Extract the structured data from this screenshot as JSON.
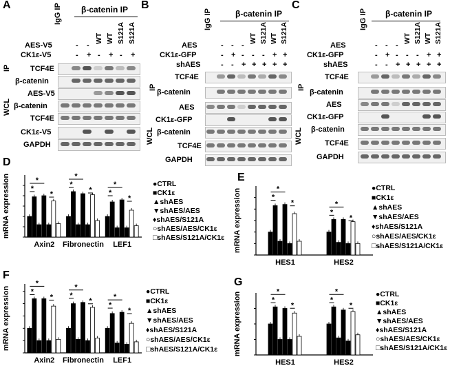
{
  "panels": {
    "A": {
      "label": "A",
      "lane_headers": [
        "IgG IP",
        "β-catenin IP"
      ],
      "conditions": [
        {
          "name": "AES-V5",
          "values": [
            "",
            "-",
            "-",
            "WT",
            "WT",
            "S121A",
            "S121A"
          ]
        },
        {
          "name": "CK1ε-V5",
          "values": [
            "",
            "-",
            "+",
            "-",
            "+",
            "-",
            "+"
          ]
        }
      ],
      "group_labels": [
        "IP",
        "WCL"
      ],
      "rows": [
        "TCF4E",
        "β-catenin",
        "AES-V5",
        "β-catenin",
        "TCF4E",
        "CK1ε-V5",
        "GAPDH"
      ]
    },
    "B": {
      "label": "B",
      "lane_headers": [
        "IgG IP",
        "β-catenin IP"
      ],
      "conditions": [
        {
          "name": "AES",
          "values": [
            "",
            "-",
            "-",
            "-",
            "WT",
            "S121A",
            "WT",
            "S121A"
          ]
        },
        {
          "name": "CK1ε-GFP",
          "values": [
            "",
            "-",
            "+",
            "-",
            "-",
            "-",
            "+",
            "+"
          ]
        },
        {
          "name": "shAES",
          "values": [
            "",
            "-",
            "-",
            "+",
            "+",
            "+",
            "+",
            "+"
          ]
        }
      ],
      "group_labels": [
        "IP",
        "WCL"
      ],
      "rows": [
        "TCF4E",
        "β-catenin",
        "AES",
        "CK1ε-GFP",
        "β-catenin",
        "TCF4E",
        "GAPDH"
      ]
    },
    "C": {
      "label": "C",
      "lane_headers": [
        "IgG IP",
        "β-catenin IP"
      ],
      "conditions": [
        {
          "name": "AES",
          "values": [
            "",
            "-",
            "-",
            "-",
            "WT",
            "S121A",
            "WT",
            "S121A"
          ]
        },
        {
          "name": "CK1ε-GFP",
          "values": [
            "",
            "-",
            "+",
            "-",
            "-",
            "-",
            "+",
            "+"
          ]
        },
        {
          "name": "shAES",
          "values": [
            "",
            "-",
            "-",
            "+",
            "+",
            "+",
            "+",
            "+"
          ]
        }
      ],
      "group_labels": [
        "IP",
        "WCL"
      ],
      "rows": [
        "TCF4E",
        "β-catenin",
        "AES",
        "CK1ε-GFP",
        "β-catenin",
        "TCF4E",
        "GAPDH"
      ]
    }
  },
  "legend_labels": [
    "CTRL",
    "CK1ε",
    "shAES",
    "shAES/AES",
    "shAES/S121A",
    "shAES/AES/CK1ε",
    "shAES/S121A/CK1ε"
  ],
  "significance": "*",
  "chart_data": [
    {
      "type": "bar",
      "panel": "D",
      "ylabel": "mRNA expression",
      "ylim": [
        0,
        3
      ],
      "yticks": [
        0,
        0.5,
        1,
        1.5,
        2,
        2.5
      ],
      "categories": [
        "Axin2",
        "Fibronectin",
        "LEF1"
      ],
      "series": [
        {
          "name": "CTRL",
          "values": [
            1.0,
            1.0,
            1.0
          ]
        },
        {
          "name": "CK1ε",
          "values": [
            1.95,
            2.2,
            1.7
          ]
        },
        {
          "name": "shAES",
          "values": [
            0.6,
            0.6,
            0.45
          ]
        },
        {
          "name": "shAES/AES",
          "values": [
            2.0,
            2.1,
            1.8
          ]
        },
        {
          "name": "shAES/S121A",
          "values": [
            0.6,
            0.6,
            0.45
          ]
        },
        {
          "name": "shAES/AES/CK1ε",
          "values": [
            1.75,
            2.05,
            1.3
          ]
        },
        {
          "name": "shAES/S121A/CK1ε",
          "values": [
            0.65,
            0.8,
            0.55
          ]
        }
      ]
    },
    {
      "type": "bar",
      "panel": "E",
      "ylabel": "mRNA expression",
      "ylim": [
        0,
        3
      ],
      "yticks": [
        0,
        0.5,
        1,
        1.5,
        2,
        2.5
      ],
      "categories": [
        "HES1",
        "HES2"
      ],
      "series": [
        {
          "name": "CTRL",
          "values": [
            1.0,
            1.0
          ]
        },
        {
          "name": "CK1ε",
          "values": [
            2.15,
            1.55
          ]
        },
        {
          "name": "shAES",
          "values": [
            0.6,
            0.55
          ]
        },
        {
          "name": "shAES/AES",
          "values": [
            2.2,
            1.55
          ]
        },
        {
          "name": "shAES/S121A",
          "values": [
            0.5,
            0.5
          ]
        },
        {
          "name": "shAES/AES/CK1ε",
          "values": [
            1.8,
            1.45
          ]
        },
        {
          "name": "shAES/S121A/CK1ε",
          "values": [
            0.6,
            0.5
          ]
        }
      ]
    },
    {
      "type": "bar",
      "panel": "F",
      "ylabel": "mRNA expression",
      "ylim": [
        0,
        2.8
      ],
      "yticks": [
        0,
        0.5,
        1,
        1.5,
        2,
        2.5
      ],
      "categories": [
        "Axin2",
        "Fibronectin",
        "LEF1"
      ],
      "series": [
        {
          "name": "CTRL",
          "values": [
            1.0,
            1.0,
            1.0
          ]
        },
        {
          "name": "CK1ε",
          "values": [
            2.2,
            2.0,
            1.6
          ]
        },
        {
          "name": "shAES",
          "values": [
            0.5,
            0.55,
            0.4
          ]
        },
        {
          "name": "shAES/AES",
          "values": [
            2.2,
            2.05,
            1.65
          ]
        },
        {
          "name": "shAES/S121A",
          "values": [
            0.5,
            0.5,
            0.35
          ]
        },
        {
          "name": "shAES/AES/CK1ε",
          "values": [
            1.9,
            1.85,
            1.2
          ]
        },
        {
          "name": "shAES/S121A/CK1ε",
          "values": [
            0.55,
            0.6,
            0.45
          ]
        }
      ]
    },
    {
      "type": "bar",
      "panel": "G",
      "ylabel": "mRNA expression",
      "ylim": [
        0,
        2
      ],
      "yticks": [
        0,
        0.5,
        1,
        1.5
      ],
      "categories": [
        "HES1",
        "HES2"
      ],
      "series": [
        {
          "name": "CTRL",
          "values": [
            1.0,
            1.0
          ]
        },
        {
          "name": "CK1ε",
          "values": [
            1.55,
            1.55
          ]
        },
        {
          "name": "shAES",
          "values": [
            0.5,
            0.55
          ]
        },
        {
          "name": "shAES/AES",
          "values": [
            1.5,
            1.45
          ]
        },
        {
          "name": "shAES/S121A",
          "values": [
            0.5,
            0.45
          ]
        },
        {
          "name": "shAES/AES/CK1ε",
          "values": [
            1.35,
            1.4
          ]
        },
        {
          "name": "shAES/S121A/CK1ε",
          "values": [
            0.6,
            0.65
          ]
        }
      ]
    }
  ]
}
